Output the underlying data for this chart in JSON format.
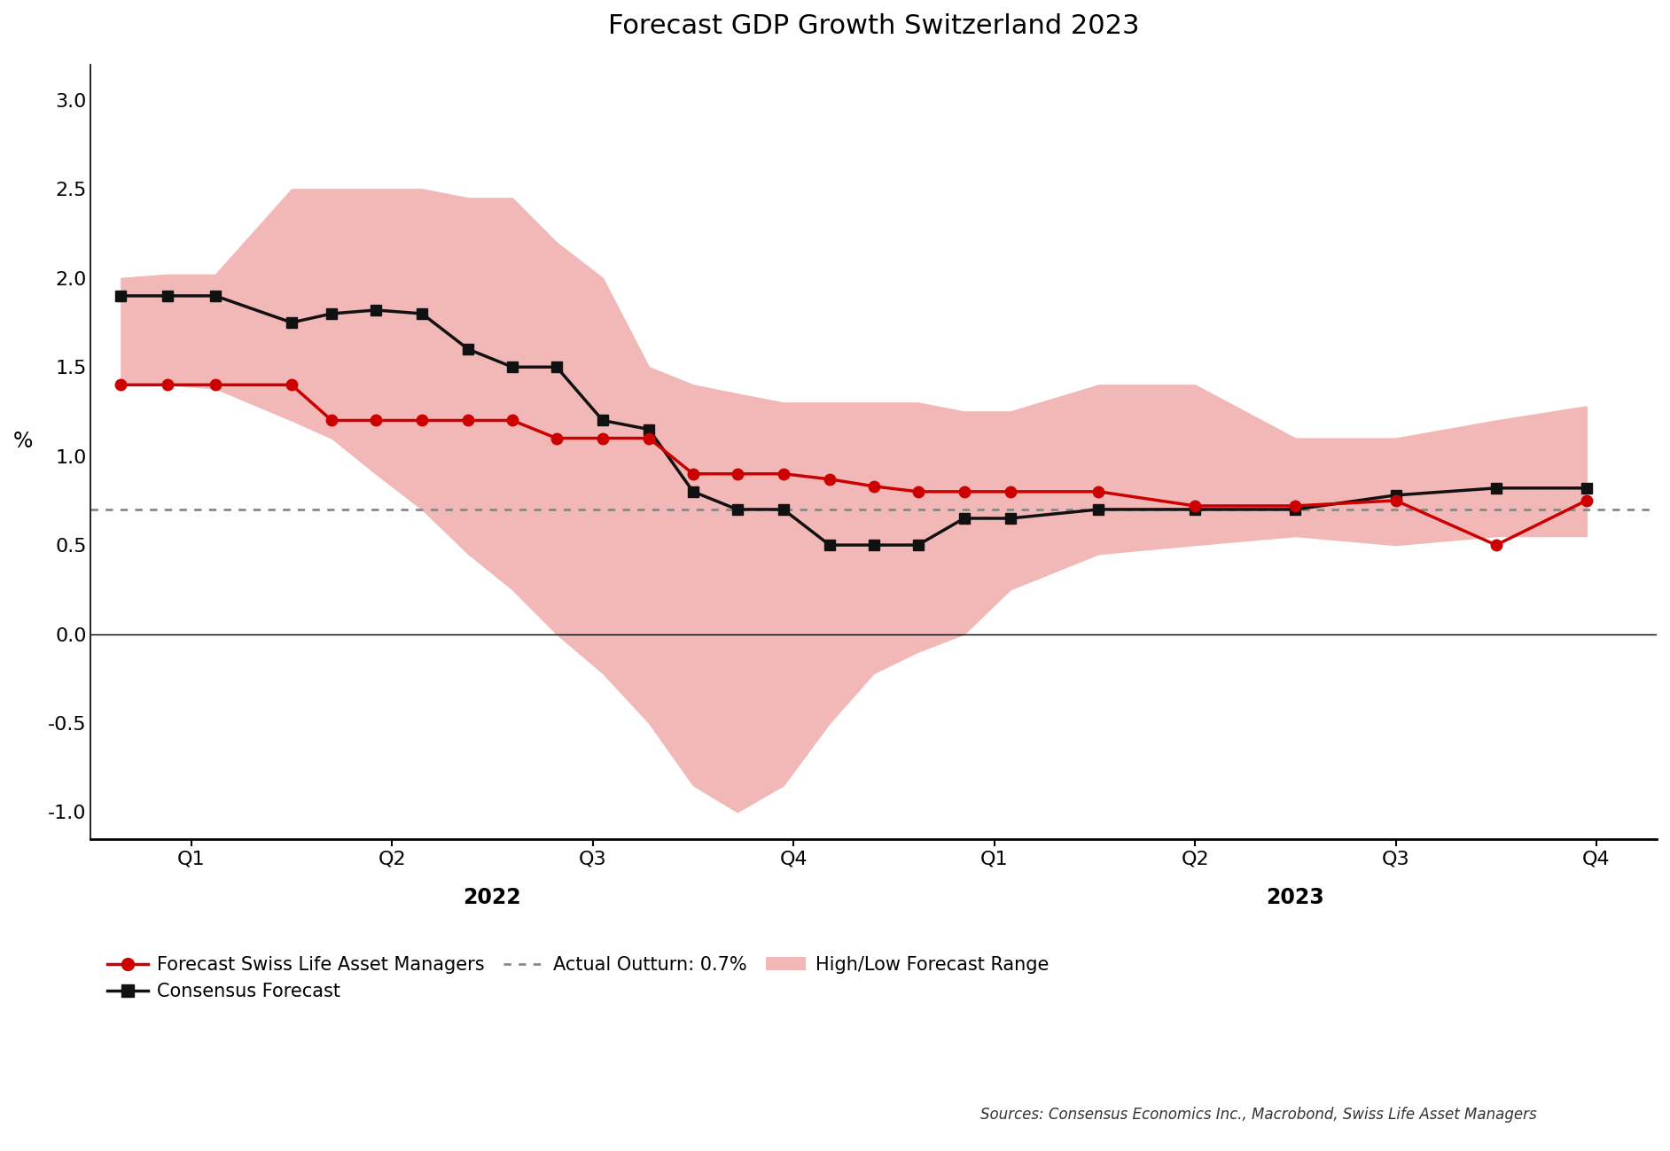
{
  "title": "Forecast GDP Growth Switzerland 2023",
  "ylabel": "%",
  "sources": "Sources: Consensus Economics Inc., Macrobond, Swiss Life Asset Managers",
  "actual_outturn": 0.7,
  "ylim": [
    -1.15,
    3.2
  ],
  "yticks": [
    -1.0,
    -0.5,
    0.0,
    0.5,
    1.0,
    1.5,
    2.0,
    2.5,
    3.0
  ],
  "swiss_life_color": "#cc0000",
  "consensus_color": "#111111",
  "actual_color": "#888888",
  "band_color": "#f2b8b8",
  "background_color": "#ffffff",
  "title_fontsize": 22,
  "axis_fontsize": 17,
  "legend_fontsize": 15,
  "tick_fontsize": 16,
  "sl_x": [
    0.15,
    0.38,
    0.62,
    1.0,
    1.2,
    1.42,
    1.65,
    1.88,
    2.1,
    2.32,
    2.55,
    2.78,
    3.0,
    3.22,
    3.45,
    3.68,
    3.9,
    4.12,
    4.35,
    4.58,
    5.02,
    5.5,
    6.0,
    6.5,
    7.0,
    7.45
  ],
  "sl_y": [
    1.4,
    1.4,
    1.4,
    1.4,
    1.2,
    1.2,
    1.2,
    1.2,
    1.2,
    1.1,
    1.1,
    1.1,
    0.9,
    0.9,
    0.9,
    0.87,
    0.83,
    0.8,
    0.8,
    0.8,
    0.8,
    0.72,
    0.72,
    0.75,
    0.5,
    0.75
  ],
  "cf_x": [
    0.15,
    0.38,
    0.62,
    1.0,
    1.2,
    1.42,
    1.65,
    1.88,
    2.1,
    2.32,
    2.55,
    2.78,
    3.0,
    3.22,
    3.45,
    3.68,
    3.9,
    4.12,
    4.35,
    4.58,
    5.02,
    5.5,
    6.0,
    6.5,
    7.0,
    7.45
  ],
  "cf_y": [
    1.9,
    1.9,
    1.9,
    1.75,
    1.8,
    1.82,
    1.8,
    1.6,
    1.5,
    1.5,
    1.2,
    1.15,
    0.8,
    0.7,
    0.7,
    0.5,
    0.5,
    0.5,
    0.65,
    0.65,
    0.7,
    0.7,
    0.7,
    0.78,
    0.82,
    0.82
  ],
  "band_x": [
    0.15,
    0.38,
    0.62,
    1.0,
    1.2,
    1.42,
    1.65,
    1.88,
    2.1,
    2.32,
    2.55,
    2.78,
    3.0,
    3.22,
    3.45,
    3.68,
    3.9,
    4.12,
    4.35,
    4.58,
    5.02,
    5.5,
    6.0,
    6.5,
    7.0,
    7.45
  ],
  "high_y": [
    2.0,
    2.02,
    2.02,
    2.5,
    2.5,
    2.5,
    2.5,
    2.45,
    2.45,
    2.2,
    2.0,
    1.5,
    1.4,
    1.35,
    1.3,
    1.3,
    1.3,
    1.3,
    1.25,
    1.25,
    1.4,
    1.4,
    1.1,
    1.1,
    1.2,
    1.28
  ],
  "low_y": [
    1.4,
    1.4,
    1.38,
    1.2,
    1.1,
    0.9,
    0.7,
    0.45,
    0.25,
    0.0,
    -0.22,
    -0.5,
    -0.85,
    -1.0,
    -0.85,
    -0.5,
    -0.22,
    -0.1,
    0.0,
    0.25,
    0.45,
    0.5,
    0.55,
    0.5,
    0.55,
    0.55
  ]
}
